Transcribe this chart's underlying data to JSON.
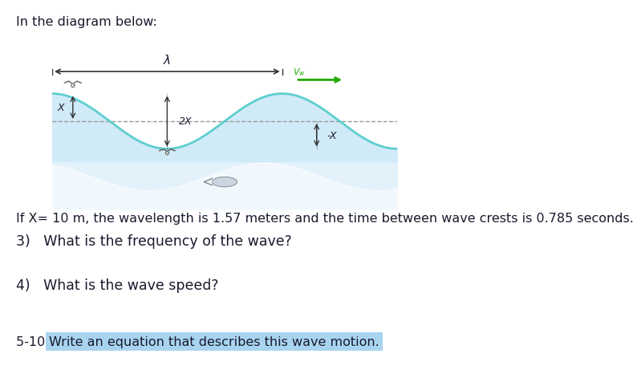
{
  "title_text": "In the diagram below:",
  "bg_color": "#ffffff",
  "wave_color": "#5ecece",
  "wave_fill_color": "#d0eaf8",
  "wave_fill_color2": "#e8f4fc",
  "dashed_line_color": "#999999",
  "arrow_color": "#333333",
  "green_arrow_color": "#22aa00",
  "x_label": "X",
  "x2_label": "2X",
  "vw_label": "$V_w$",
  "lambda_label": "λ",
  "minus_x_label": "-X",
  "line0": "If X= 10 m, the wavelength is 1.57 meters and the time between wave crests is 0.785 seconds.",
  "line1": "3)   What is the frequency of the wave?",
  "line2": "4)   What is the wave speed?",
  "line3_prefix": "5-10 ",
  "line3_highlight": "Write an equation that describes this wave motion.",
  "highlight_color": "#a8d4f0",
  "text_color": "#1a1a2e",
  "font_size_body": 11.5,
  "font_size_label": 9
}
